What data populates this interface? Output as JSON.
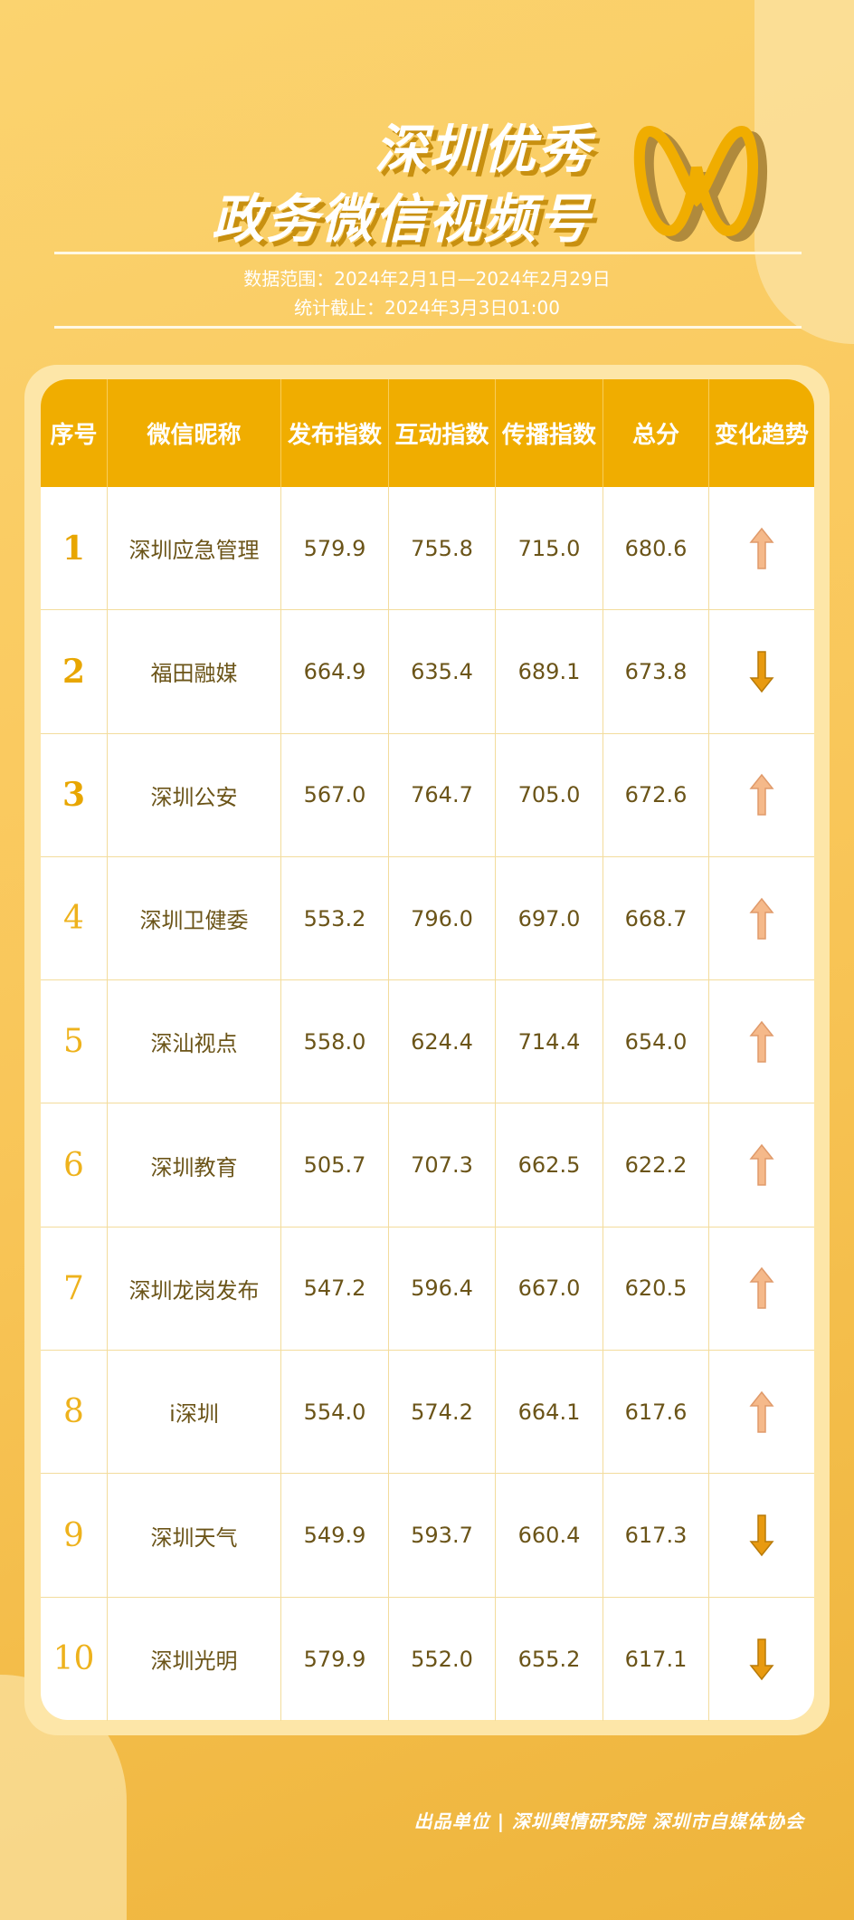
{
  "title": {
    "line1": "深圳优秀",
    "line2": "政务微信视频号"
  },
  "subtitle": {
    "range": "数据范围：2024年2月1日—2024年2月29日",
    "cutoff": "统计截止：2024年3月3日01:00"
  },
  "colors": {
    "header": "#f0ad00",
    "up": "#f5b98a",
    "down": "#e89a10"
  },
  "table": {
    "headers": [
      "序号",
      "微信昵称",
      "发布指数",
      "互动指数",
      "传播指数",
      "总分",
      "变化趋势"
    ],
    "rows": [
      {
        "rank": "1",
        "name": "深圳应急管理",
        "publish": "579.9",
        "interact": "755.8",
        "spread": "715.0",
        "total": "680.6",
        "trend": "up"
      },
      {
        "rank": "2",
        "name": "福田融媒",
        "publish": "664.9",
        "interact": "635.4",
        "spread": "689.1",
        "total": "673.8",
        "trend": "down"
      },
      {
        "rank": "3",
        "name": "深圳公安",
        "publish": "567.0",
        "interact": "764.7",
        "spread": "705.0",
        "total": "672.6",
        "trend": "up"
      },
      {
        "rank": "4",
        "name": "深圳卫健委",
        "publish": "553.2",
        "interact": "796.0",
        "spread": "697.0",
        "total": "668.7",
        "trend": "up"
      },
      {
        "rank": "5",
        "name": "深汕视点",
        "publish": "558.0",
        "interact": "624.4",
        "spread": "714.4",
        "total": "654.0",
        "trend": "up"
      },
      {
        "rank": "6",
        "name": "深圳教育",
        "publish": "505.7",
        "interact": "707.3",
        "spread": "662.5",
        "total": "622.2",
        "trend": "up"
      },
      {
        "rank": "7",
        "name": "深圳龙岗发布",
        "publish": "547.2",
        "interact": "596.4",
        "spread": "667.0",
        "total": "620.5",
        "trend": "up"
      },
      {
        "rank": "8",
        "name": "i深圳",
        "publish": "554.0",
        "interact": "574.2",
        "spread": "664.1",
        "total": "617.6",
        "trend": "up"
      },
      {
        "rank": "9",
        "name": "深圳天气",
        "publish": "549.9",
        "interact": "593.7",
        "spread": "660.4",
        "total": "617.3",
        "trend": "down"
      },
      {
        "rank": "10",
        "name": "深圳光明",
        "publish": "579.9",
        "interact": "552.0",
        "spread": "655.2",
        "total": "617.1",
        "trend": "down"
      }
    ]
  },
  "footer": "出品单位 | 深圳舆情研究院 深圳市自媒体协会"
}
